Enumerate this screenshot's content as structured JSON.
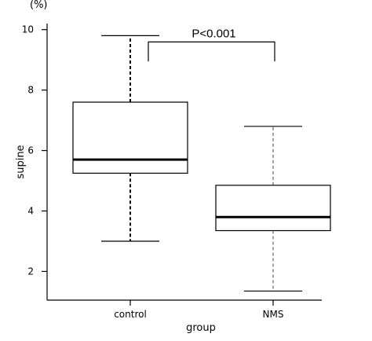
{
  "chart_data": {
    "type": "box",
    "unit_label": "(%)",
    "ylabel": "supine",
    "xlabel": "group",
    "ylim": [
      1.05,
      10.2
    ],
    "yticks": [
      2,
      4,
      6,
      8,
      10
    ],
    "categories": [
      "control",
      "NMS"
    ],
    "boxes": [
      {
        "category": "control",
        "whisker_low": 3.0,
        "q1": 5.25,
        "median": 5.7,
        "q3": 7.6,
        "whisker_high": 9.8
      },
      {
        "category": "NMS",
        "whisker_low": 1.35,
        "q1": 3.35,
        "median": 3.8,
        "q3": 4.85,
        "whisker_high": 6.8
      }
    ],
    "annotation": {
      "text": "P<0.001",
      "bracket_y": 9.8,
      "drop_to": 9.0
    }
  }
}
